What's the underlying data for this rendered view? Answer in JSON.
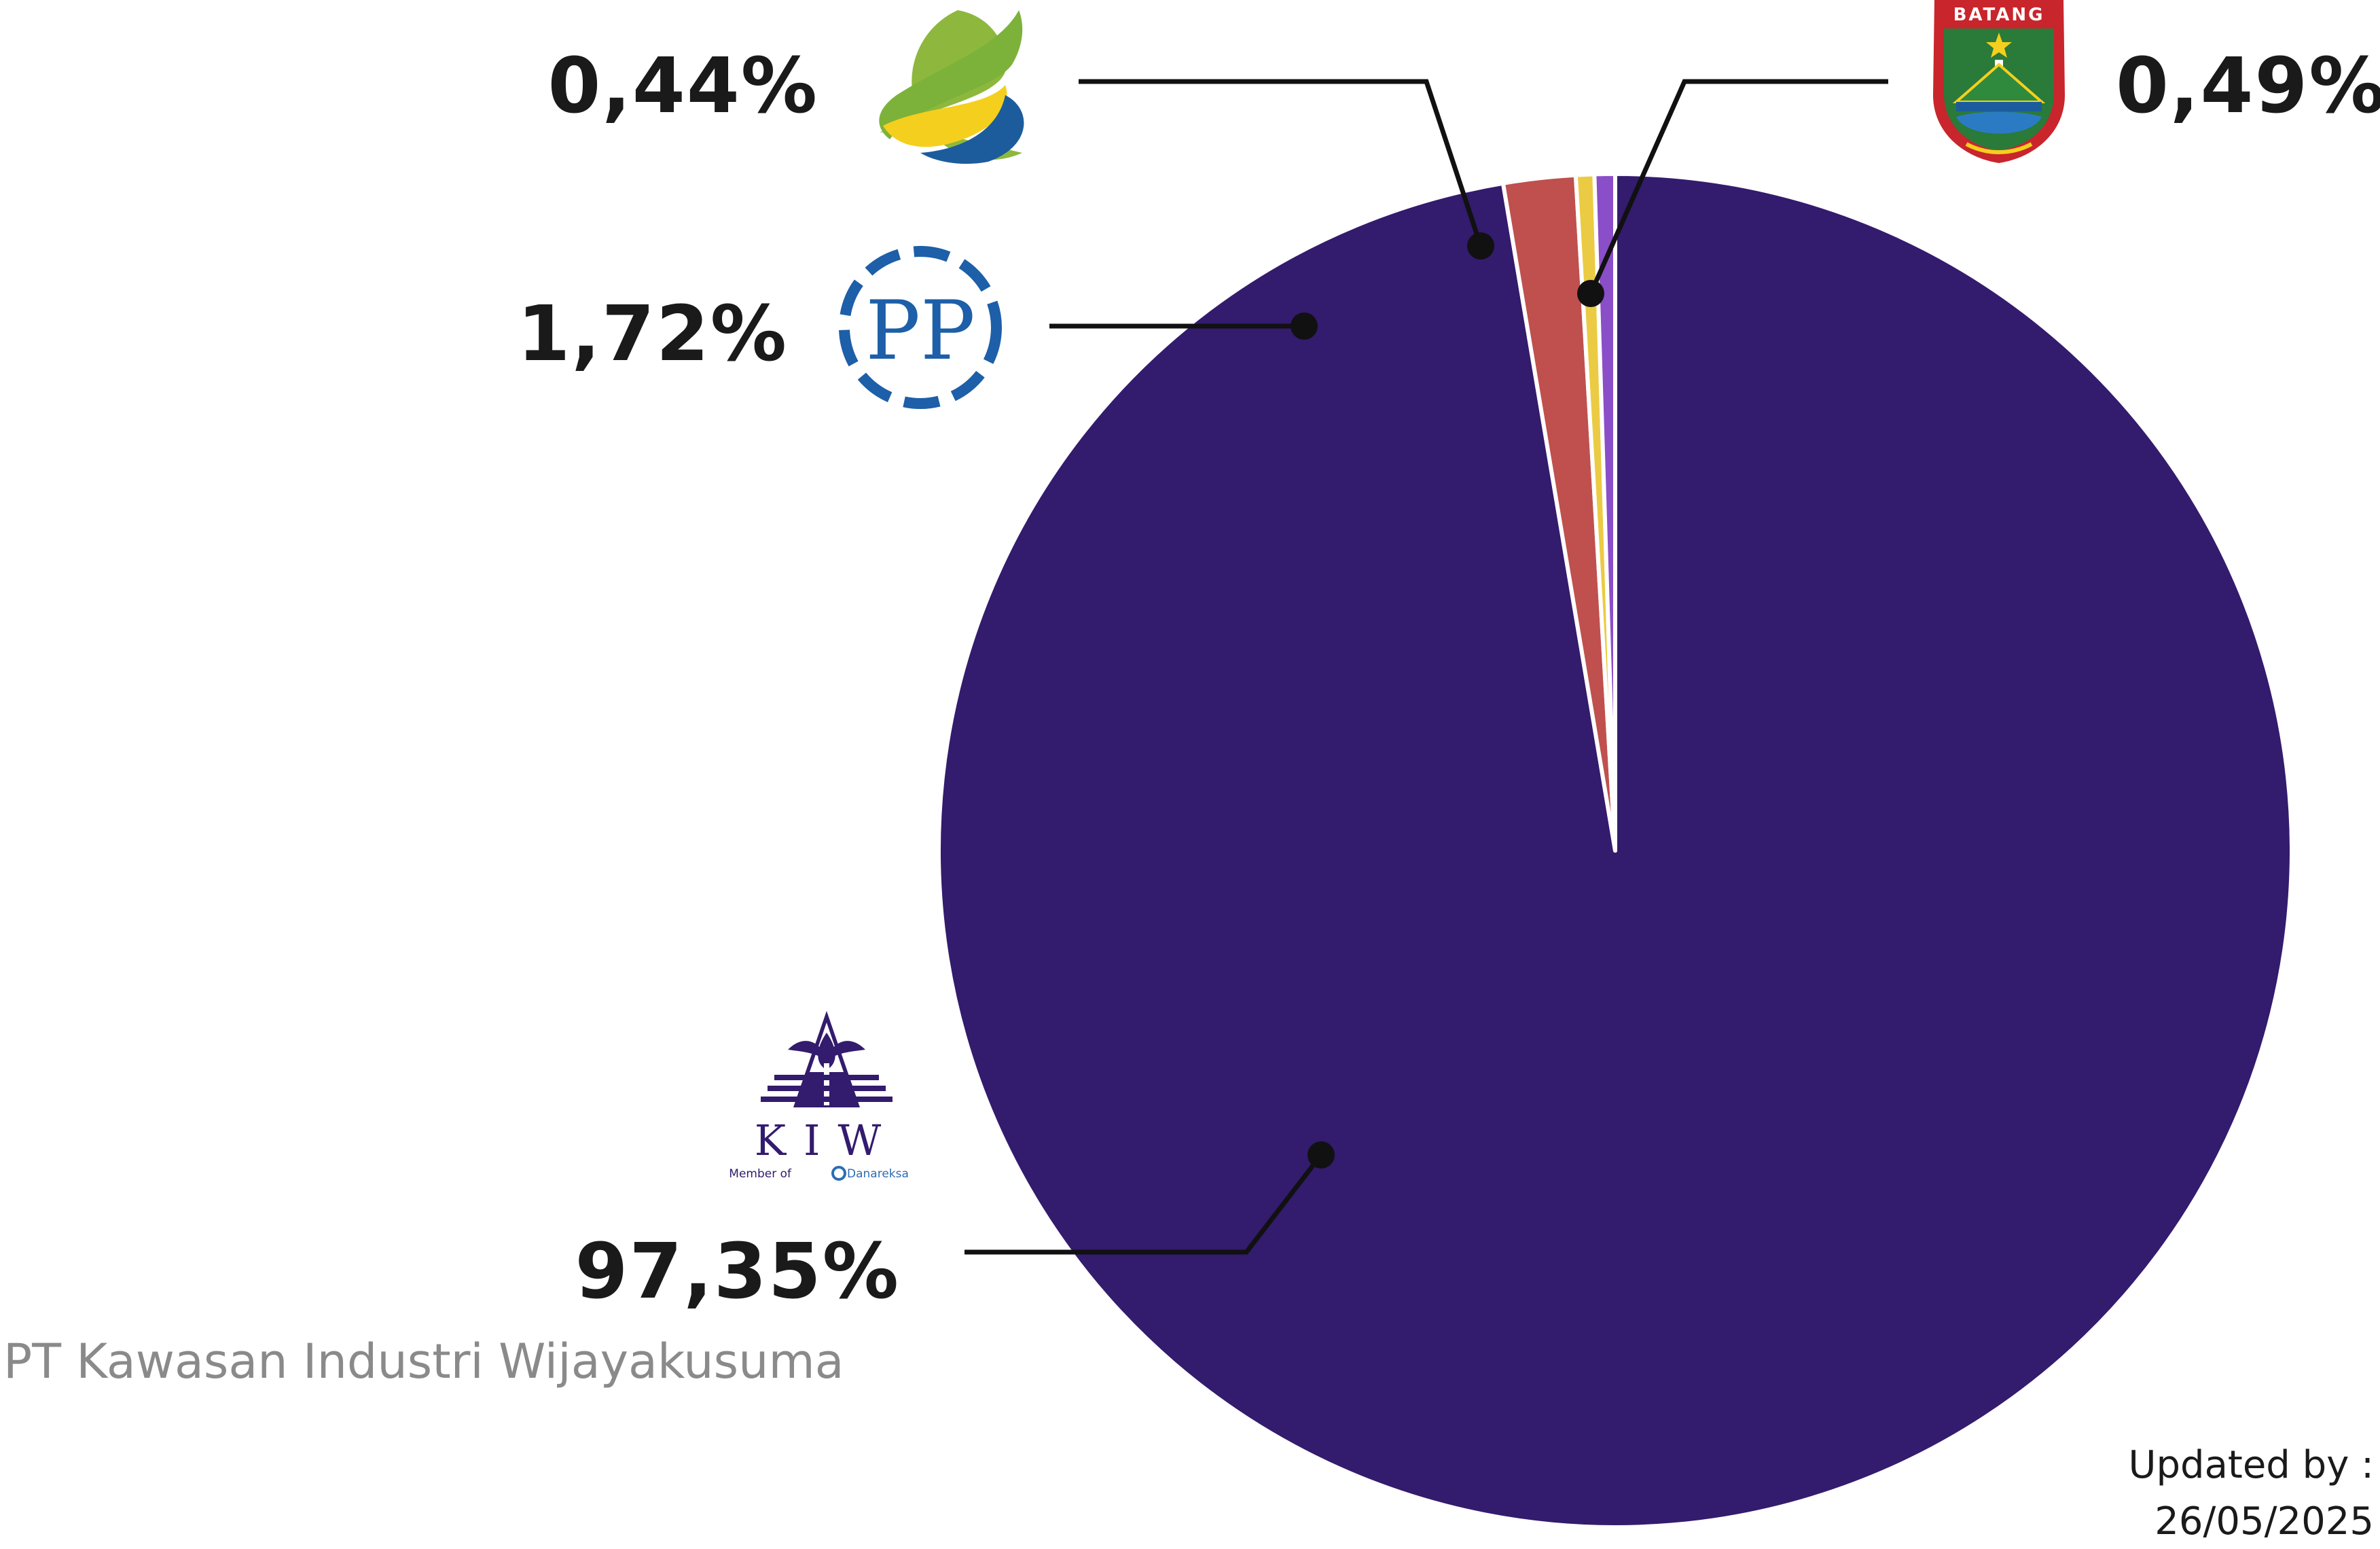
{
  "chart_data": {
    "type": "pie",
    "slices": [
      {
        "label": "PT Kawasan Industri Wijayakusuma",
        "value": 97.35,
        "display": "97,35%",
        "color": "#331b6d",
        "logo": "kiw-logo"
      },
      {
        "label": "",
        "value": 1.72,
        "display": "1,72%",
        "color": "#bf504e",
        "logo": "pp-logo"
      },
      {
        "label": "",
        "value": 0.44,
        "display": "0,44%",
        "color": "#ebcb43",
        "logo": "green-wave-logo"
      },
      {
        "label": "",
        "value": 0.49,
        "display": "0,49%",
        "color": "#8a4ec8",
        "logo": "batang-crest-logo"
      }
    ],
    "start_angle": "12 o'clock",
    "direction": "clockwise",
    "legend": "none"
  },
  "logos": {
    "kiw": {
      "text": "KIW",
      "tagline": "Member of",
      "parent": "Danareksa"
    },
    "pp": {
      "text": "PP"
    },
    "batang": {
      "text": "BATANG"
    }
  },
  "footer": {
    "updated_label": "Updated by :",
    "updated_date": "26/05/2025"
  }
}
